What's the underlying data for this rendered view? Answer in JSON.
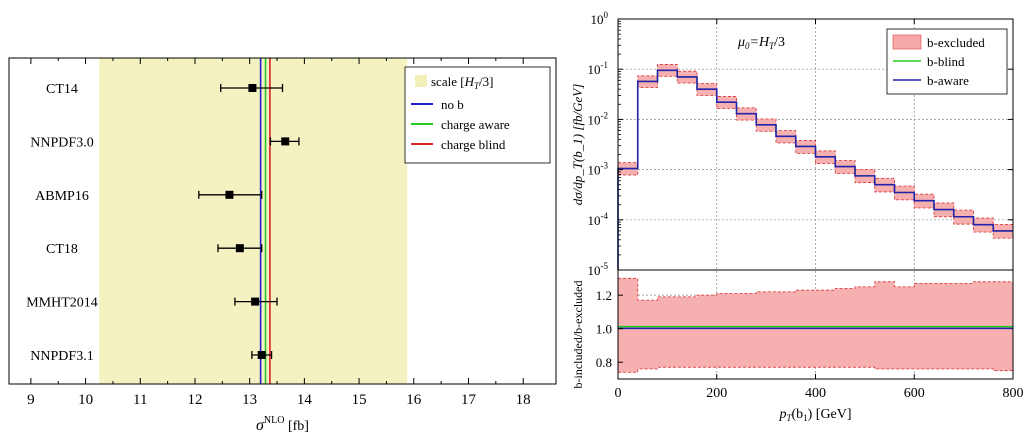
{
  "chart_data": [
    {
      "type": "scatter",
      "xlabel_main": "σ",
      "xlabel_sup": "NLO",
      "xlabel_unit": " [fb]",
      "xlim": [
        8.6,
        18.6
      ],
      "xticks": [
        9,
        10,
        11,
        12,
        13,
        14,
        15,
        16,
        17,
        18
      ],
      "categories": [
        "CT14",
        "NNPDF3.0",
        "ABMP16",
        "CT18",
        "MMHT2014",
        "NNPDF3.1"
      ],
      "values": [
        13.05,
        13.65,
        12.63,
        12.82,
        13.1,
        13.22
      ],
      "err_low": [
        12.47,
        13.38,
        12.07,
        12.42,
        12.73,
        13.04
      ],
      "err_high": [
        13.6,
        13.9,
        13.22,
        13.22,
        13.5,
        13.4
      ],
      "scale_band": [
        10.25,
        15.88
      ],
      "vlines": [
        {
          "name": "no b",
          "x": 13.2,
          "color": "#2222cc"
        },
        {
          "name": "charge aware",
          "x": 13.29,
          "color": "#22cc22"
        },
        {
          "name": "charge blind",
          "x": 13.37,
          "color": "#dd2222"
        }
      ],
      "legend": {
        "placement": "top-right",
        "scale_label": "scale [",
        "scale_var": "H",
        "scale_sub": "T",
        "scale_tail": "/3]"
      },
      "colors": {
        "band": "#f5f2c2",
        "band_legend": "#f2efbb"
      }
    },
    {
      "type": "line",
      "annotation_mu": "μ",
      "annotation_mu_sub": "0",
      "annotation_rest": "=H",
      "annotation_rest_sub": "T",
      "annotation_tail": "/3",
      "xlabel_main": "p",
      "xlabel_sub": "T",
      "xlabel_rest": "(b",
      "xlabel_rest_sub": "1",
      "xlabel_tail": ") [GeV]",
      "ylabel_top": "dσ/dp_T(b_1) [fb/GeV]",
      "ylabel_bottom": "b-included/b-excluded",
      "xlim": [
        0,
        800
      ],
      "xticks": [
        0,
        200,
        400,
        600,
        800
      ],
      "ylim_top_log": [
        -5,
        0
      ],
      "yticks_top": [
        {
          "base": "10",
          "exp": "0"
        },
        {
          "base": "10",
          "exp": "-1"
        },
        {
          "base": "10",
          "exp": "-2"
        },
        {
          "base": "10",
          "exp": "-3"
        },
        {
          "base": "10",
          "exp": "-4"
        },
        {
          "base": "10",
          "exp": "-5"
        }
      ],
      "ylim_bottom": [
        0.7,
        1.35
      ],
      "yticks_bottom": [
        "0.8",
        "1.0",
        "1.2"
      ],
      "bin_edges": [
        0,
        40,
        80,
        120,
        160,
        200,
        240,
        280,
        320,
        360,
        400,
        440,
        480,
        520,
        560,
        600,
        640,
        680,
        720,
        760,
        800
      ],
      "central": [
        0.00105,
        0.057,
        0.095,
        0.07,
        0.04,
        0.022,
        0.013,
        0.0078,
        0.0046,
        0.0029,
        0.0018,
        0.00115,
        0.00075,
        0.0005,
        0.00035,
        0.00024,
        0.00016,
        0.000115,
        8e-05,
        6e-05
      ],
      "band_low": [
        0.00078,
        0.043,
        0.072,
        0.053,
        0.03,
        0.0165,
        0.0097,
        0.0058,
        0.0034,
        0.0021,
        0.00132,
        0.00084,
        0.00055,
        0.00036,
        0.00025,
        0.000172,
        0.000115,
        8.2e-05,
        5.7e-05,
        4.3e-05
      ],
      "band_high": [
        0.00138,
        0.074,
        0.124,
        0.091,
        0.052,
        0.0286,
        0.017,
        0.0102,
        0.006,
        0.0038,
        0.00236,
        0.00152,
        0.001,
        0.00067,
        0.00047,
        0.000323,
        0.000216,
        0.000156,
        0.000108,
        8.1e-05
      ],
      "ratio_low": [
        0.74,
        0.76,
        0.77,
        0.77,
        0.77,
        0.77,
        0.77,
        0.77,
        0.77,
        0.77,
        0.77,
        0.77,
        0.77,
        0.76,
        0.76,
        0.76,
        0.76,
        0.76,
        0.76,
        0.75
      ],
      "ratio_high": [
        1.3,
        1.17,
        1.19,
        1.19,
        1.2,
        1.21,
        1.21,
        1.22,
        1.22,
        1.23,
        1.23,
        1.24,
        1.25,
        1.28,
        1.25,
        1.27,
        1.27,
        1.27,
        1.28,
        1.28
      ],
      "ratio_lines": [
        {
          "name": "b-blind",
          "values": 1.012,
          "color": "#22cc22"
        },
        {
          "name": "b-aware",
          "values": 1.002,
          "color": "#2222aa"
        }
      ],
      "legend": {
        "placement": "top-right",
        "items": [
          {
            "name": "b-excluded",
            "color": "#f7a9a9"
          },
          {
            "name": "b-blind",
            "color": "#22cc22"
          },
          {
            "name": "b-aware",
            "color": "#2222aa"
          }
        ]
      },
      "colors": {
        "band": "#f7b0b0",
        "band_edge": "#dd4444",
        "central": "#2222aa",
        "grid": "#888888"
      }
    }
  ]
}
